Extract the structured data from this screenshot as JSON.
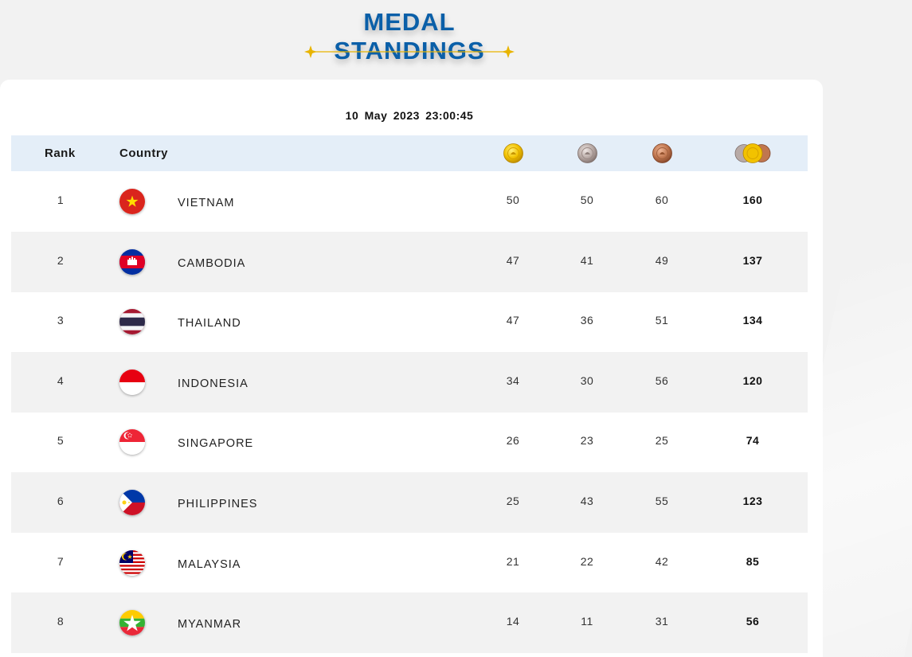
{
  "header": {
    "title": "MEDAL STANDINGS"
  },
  "timestamp": "10 May 2023  23:00:45",
  "table": {
    "columns": {
      "rank": "Rank",
      "country": "Country",
      "gold_icon": "gold-medal-icon",
      "silver_icon": "silver-medal-icon",
      "bronze_icon": "bronze-medal-icon",
      "total_icon": "total-medals-icon"
    },
    "rows": [
      {
        "rank": "1",
        "country": "VIETNAM",
        "gold": "50",
        "silver": "50",
        "bronze": "60",
        "total": "160",
        "flag": "vietnam-flag-icon"
      },
      {
        "rank": "2",
        "country": "CAMBODIA",
        "gold": "47",
        "silver": "41",
        "bronze": "49",
        "total": "137",
        "flag": "cambodia-flag-icon"
      },
      {
        "rank": "3",
        "country": "THAILAND",
        "gold": "47",
        "silver": "36",
        "bronze": "51",
        "total": "134",
        "flag": "thailand-flag-icon"
      },
      {
        "rank": "4",
        "country": "INDONESIA",
        "gold": "34",
        "silver": "30",
        "bronze": "56",
        "total": "120",
        "flag": "indonesia-flag-icon"
      },
      {
        "rank": "5",
        "country": "SINGAPORE",
        "gold": "26",
        "silver": "23",
        "bronze": "25",
        "total": "74",
        "flag": "singapore-flag-icon"
      },
      {
        "rank": "6",
        "country": "PHILIPPINES",
        "gold": "25",
        "silver": "43",
        "bronze": "55",
        "total": "123",
        "flag": "philippines-flag-icon"
      },
      {
        "rank": "7",
        "country": "MALAYSIA",
        "gold": "21",
        "silver": "22",
        "bronze": "42",
        "total": "85",
        "flag": "malaysia-flag-icon"
      },
      {
        "rank": "8",
        "country": "MYANMAR",
        "gold": "14",
        "silver": "11",
        "bronze": "31",
        "total": "56",
        "flag": "myanmar-flag-icon"
      }
    ]
  },
  "colors": {
    "title": "#0a5fa8",
    "header_bg": "#e4eef8",
    "alt_row_bg": "#f2f2f2",
    "gold": "#f2c200",
    "silver": "#b8aaa6",
    "bronze": "#c0764f",
    "divider": "#e8b400"
  }
}
